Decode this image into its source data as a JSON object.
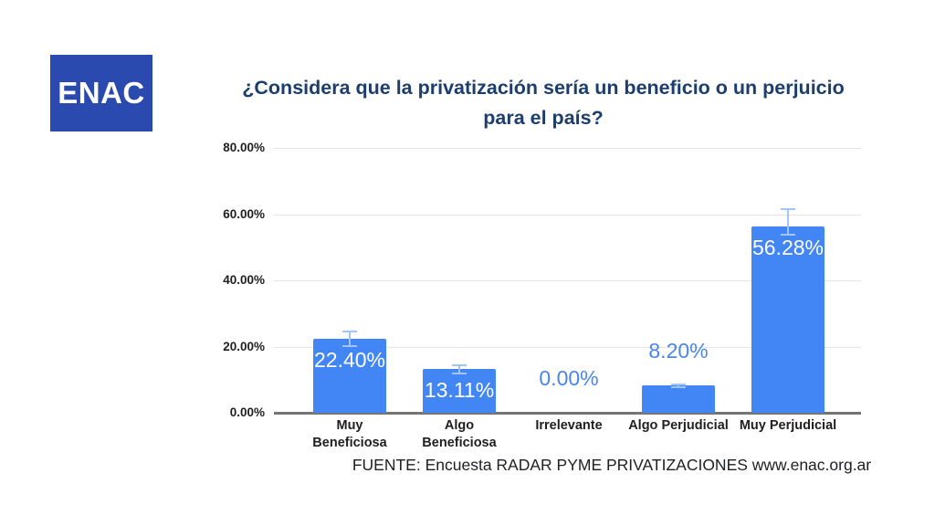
{
  "logo": {
    "text": "ENAC",
    "bg_color": "#2a4ab0"
  },
  "title": "¿Considera que la privatización sería un beneficio o un perjuicio para el país?",
  "footer": "FUENTE: Encuesta RADAR PYME PRIVATIZACIONES www.enac.org.ar",
  "chart_data": {
    "type": "bar",
    "title": "¿Considera que la privatización sería un beneficio o un perjuicio para el país?",
    "categories": [
      "Muy Beneficiosa",
      "Algo Beneficiosa",
      "Irrelevante",
      "Algo Perjudicial",
      "Muy Perjudicial"
    ],
    "category_lines": [
      [
        "Muy",
        "Beneficiosa"
      ],
      [
        "Algo",
        "Beneficiosa"
      ],
      [
        "Irrelevante"
      ],
      [
        "Algo Perjudicial"
      ],
      [
        "Muy Perjudicial"
      ]
    ],
    "values": [
      22.4,
      13.11,
      0.0,
      8.2,
      56.28
    ],
    "value_labels": [
      "22.40%",
      "13.11%",
      "0.00%",
      "8.20%",
      "56.28%"
    ],
    "label_placement": [
      "inside",
      "inside",
      "outside",
      "outside",
      "inside"
    ],
    "error_bars": [
      {
        "upper": 24.8,
        "lower": 19.9
      },
      {
        "upper": 14.5,
        "lower": 11.7
      },
      null,
      {
        "upper": 8.9,
        "lower": 7.5
      },
      {
        "upper": 61.8,
        "lower": 53.5
      }
    ],
    "y_ticks": [
      {
        "label": "0.00%",
        "value": 0
      },
      {
        "label": "20.00%",
        "value": 20
      },
      {
        "label": "40.00%",
        "value": 40
      },
      {
        "label": "60.00%",
        "value": 60
      },
      {
        "label": "80.00%",
        "value": 80
      }
    ],
    "ylim": [
      0,
      80
    ],
    "grid": true,
    "legend": "none",
    "colors": {
      "bar": "#4285f4",
      "error_bar": "#a2c4f8",
      "label_inside": "#fefefe",
      "label_outside": "#4a86e8",
      "gridline": "#e3e3e3",
      "axis_line": "#757575",
      "tick_text": "#1f1f1f",
      "title_text": "#1c3e6e",
      "category_text": "#1f1f1f"
    }
  }
}
